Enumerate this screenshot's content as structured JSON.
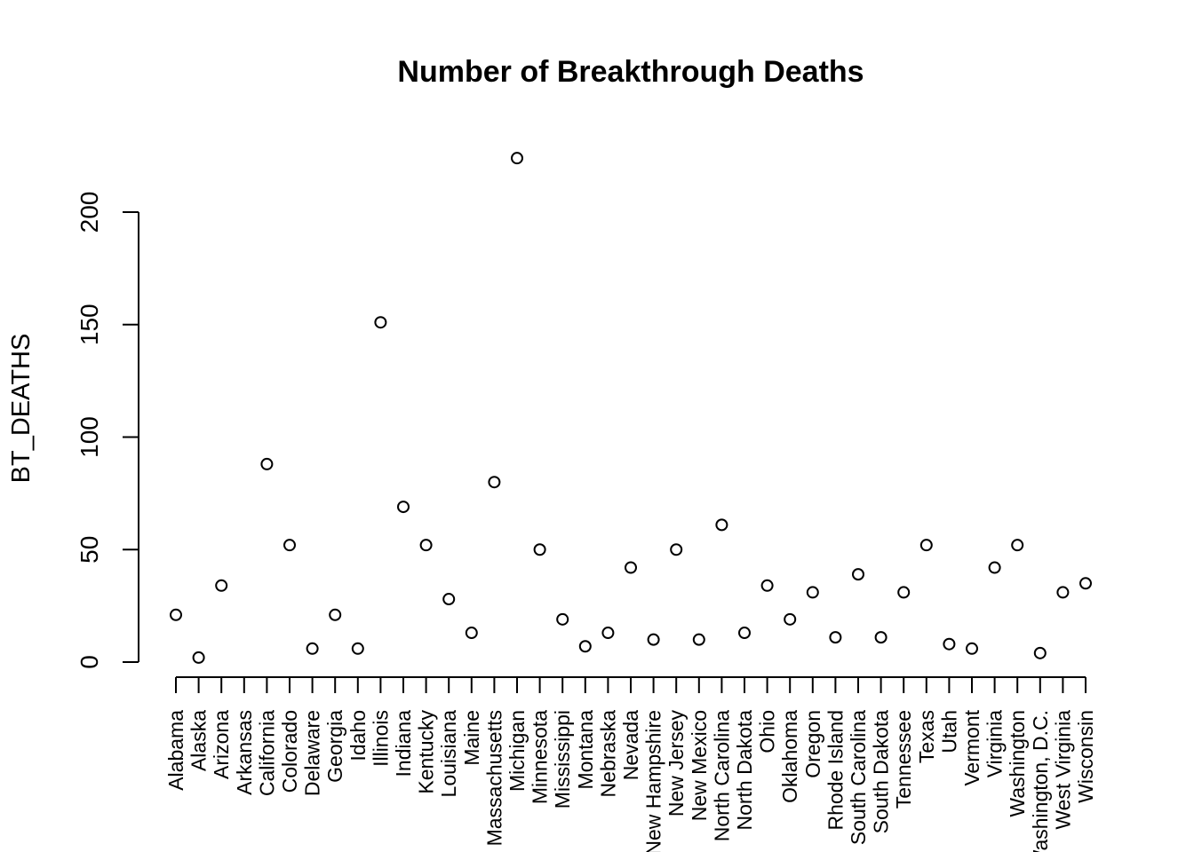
{
  "chart_data": {
    "type": "scatter",
    "title": "Number of Breakthrough Deaths",
    "xlabel": "",
    "ylabel": "BT_DEATHS",
    "ylim": [
      0,
      200
    ],
    "yticks": [
      0,
      50,
      100,
      150,
      200
    ],
    "grid": false,
    "categories": [
      "Alabama",
      "Alaska",
      "Arizona",
      "Arkansas",
      "California",
      "Colorado",
      "Delaware",
      "Georgia",
      "Idaho",
      "Illinois",
      "Indiana",
      "Kentucky",
      "Louisiana",
      "Maine",
      "Massachusetts",
      "Michigan",
      "Minnesota",
      "Mississippi",
      "Montana",
      "Nebraska",
      "Nevada",
      "New Hampshire",
      "New Jersey",
      "New Mexico",
      "North Carolina",
      "North Dakota",
      "Ohio",
      "Oklahoma",
      "Oregon",
      "Rhode Island",
      "South Carolina",
      "South Dakota",
      "Tennessee",
      "Texas",
      "Utah",
      "Vermont",
      "Virginia",
      "Washington",
      "Washington, D.C.",
      "West Virginia",
      "Wisconsin"
    ],
    "values": [
      21,
      2,
      34,
      null,
      88,
      52,
      6,
      21,
      6,
      151,
      69,
      52,
      28,
      13,
      80,
      224,
      50,
      19,
      7,
      13,
      42,
      10,
      50,
      10,
      61,
      13,
      34,
      19,
      31,
      11,
      39,
      11,
      31,
      52,
      8,
      6,
      42,
      52,
      4,
      31,
      35
    ]
  }
}
